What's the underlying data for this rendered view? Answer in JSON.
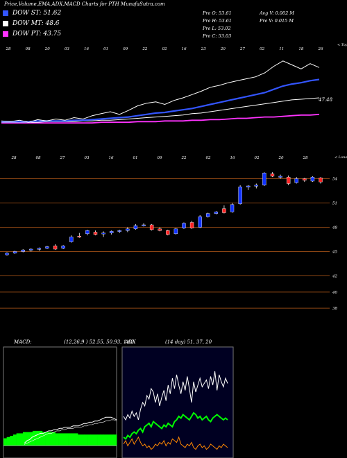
{
  "page_title": "Price,Volume,EMA,ADX,MACD Charts for PTH MunafaSutra.com",
  "legend": [
    {
      "label": "DOW ST: 51.62",
      "color": "#3355ff"
    },
    {
      "label": "DOW MT: 48.6",
      "color": "#ffffff"
    },
    {
      "label": "DOW PT: 43.75",
      "color": "#ff33ff"
    }
  ],
  "stats": {
    "open": "Pre O: 53.61",
    "high": "Pre H: 53.61",
    "low": "Pre L: 53.02",
    "close": "Pre C: 53.03",
    "avg_volume": "Avg V: 0.002 M",
    "pre_volume": "Pre V: 0.015 M"
  },
  "colors": {
    "background": "#000000",
    "up": "#1133ff",
    "down": "#ff2222",
    "grid": "#8b4513",
    "macd_fill": "#00ff00",
    "adx_bg": "#000022"
  },
  "chart_data": [
    {
      "type": "line",
      "name": "ema-panel",
      "top_ticks": [
        "28",
        "08",
        "20",
        "03",
        "16",
        "01",
        "09",
        "22",
        "02",
        "16",
        "23",
        "20",
        "27",
        "02",
        "11",
        "18",
        "26"
      ],
      "bottom_text": "< Topu",
      "value_label": "47.48",
      "series": [
        {
          "name": "Price",
          "color": "#ffffff",
          "values": [
            45.1,
            45.0,
            45.2,
            44.9,
            45.3,
            45.1,
            45.4,
            45.2,
            45.6,
            45.4,
            45.9,
            46.2,
            46.5,
            46.1,
            46.7,
            47.4,
            47.8,
            48.0,
            47.6,
            48.2,
            48.6,
            49.1,
            49.6,
            50.2,
            50.5,
            50.9,
            51.2,
            51.5,
            51.8,
            52.4,
            53.4,
            54.2,
            53.6,
            53.0,
            53.8,
            53.2
          ]
        },
        {
          "name": "EMA short",
          "color": "#3355ff",
          "values": [
            45.0,
            45.0,
            45.0,
            45.0,
            45.1,
            45.1,
            45.1,
            45.1,
            45.2,
            45.2,
            45.3,
            45.4,
            45.5,
            45.6,
            45.7,
            45.9,
            46.1,
            46.3,
            46.4,
            46.6,
            46.8,
            47.0,
            47.3,
            47.6,
            47.9,
            48.2,
            48.5,
            48.8,
            49.1,
            49.4,
            49.9,
            50.4,
            50.7,
            50.9,
            51.2,
            51.4
          ]
        },
        {
          "name": "EMA medium",
          "color": "#ffffff",
          "values": [
            44.9,
            44.9,
            44.9,
            44.9,
            44.9,
            45.0,
            45.0,
            45.0,
            45.0,
            45.1,
            45.1,
            45.2,
            45.2,
            45.3,
            45.4,
            45.5,
            45.6,
            45.7,
            45.8,
            45.9,
            46.0,
            46.2,
            46.3,
            46.5,
            46.7,
            46.9,
            47.1,
            47.3,
            47.5,
            47.7,
            47.9,
            48.1,
            48.3,
            48.4,
            48.5,
            48.6
          ]
        },
        {
          "name": "EMA long",
          "color": "#ff33ff",
          "values": [
            44.8,
            44.8,
            44.8,
            44.8,
            44.8,
            44.8,
            44.8,
            44.8,
            44.8,
            44.8,
            44.8,
            44.9,
            44.9,
            44.9,
            44.9,
            45.0,
            45.0,
            45.0,
            45.1,
            45.1,
            45.1,
            45.2,
            45.2,
            45.3,
            45.3,
            45.4,
            45.5,
            45.5,
            45.6,
            45.7,
            45.7,
            45.8,
            45.9,
            46.0,
            46.0,
            46.1
          ]
        }
      ]
    },
    {
      "type": "candlestick",
      "name": "price-panel",
      "top_ticks": [
        "28",
        "08",
        "27",
        "03",
        "16",
        "01",
        "09",
        "22",
        "02",
        "16",
        "02",
        "20",
        "28"
      ],
      "bottom_text": "< Lonon",
      "y_ticks": [
        54,
        51,
        48,
        45,
        42,
        40,
        38
      ],
      "ylim": [
        37.5,
        55.5
      ],
      "candles": [
        {
          "o": 44.6,
          "h": 44.9,
          "l": 44.5,
          "c": 44.8,
          "up": true
        },
        {
          "o": 44.8,
          "h": 45.1,
          "l": 44.7,
          "c": 45.0,
          "up": true
        },
        {
          "o": 45.0,
          "h": 45.3,
          "l": 44.9,
          "c": 45.2,
          "up": true
        },
        {
          "o": 45.2,
          "h": 45.4,
          "l": 45.0,
          "c": 45.3,
          "up": true
        },
        {
          "o": 45.3,
          "h": 45.5,
          "l": 45.1,
          "c": 45.4,
          "up": true
        },
        {
          "o": 45.4,
          "h": 45.7,
          "l": 45.3,
          "c": 45.6,
          "up": true
        },
        {
          "o": 45.7,
          "h": 45.9,
          "l": 45.2,
          "c": 45.3,
          "up": false
        },
        {
          "o": 45.4,
          "h": 45.8,
          "l": 45.3,
          "c": 45.7,
          "up": true
        },
        {
          "o": 46.2,
          "h": 47.0,
          "l": 46.1,
          "c": 46.8,
          "up": true
        },
        {
          "o": 46.9,
          "h": 47.3,
          "l": 46.7,
          "c": 46.8,
          "up": false
        },
        {
          "o": 47.2,
          "h": 47.7,
          "l": 47.0,
          "c": 47.6,
          "up": true
        },
        {
          "o": 47.4,
          "h": 47.6,
          "l": 47.0,
          "c": 47.1,
          "up": false
        },
        {
          "o": 47.2,
          "h": 47.5,
          "l": 46.8,
          "c": 47.3,
          "up": true
        },
        {
          "o": 47.3,
          "h": 47.6,
          "l": 47.1,
          "c": 47.5,
          "up": true
        },
        {
          "o": 47.5,
          "h": 47.7,
          "l": 47.3,
          "c": 47.6,
          "up": true
        },
        {
          "o": 47.6,
          "h": 48.0,
          "l": 47.4,
          "c": 47.8,
          "up": true
        },
        {
          "o": 47.8,
          "h": 48.4,
          "l": 47.7,
          "c": 48.2,
          "up": true
        },
        {
          "o": 48.3,
          "h": 48.5,
          "l": 48.1,
          "c": 48.3,
          "up": true
        },
        {
          "o": 48.3,
          "h": 48.4,
          "l": 47.6,
          "c": 47.7,
          "up": false
        },
        {
          "o": 47.8,
          "h": 48.0,
          "l": 47.5,
          "c": 47.6,
          "up": false
        },
        {
          "o": 47.6,
          "h": 47.7,
          "l": 47.0,
          "c": 47.1,
          "up": false
        },
        {
          "o": 47.2,
          "h": 47.9,
          "l": 47.1,
          "c": 47.8,
          "up": true
        },
        {
          "o": 47.9,
          "h": 48.6,
          "l": 47.8,
          "c": 48.5,
          "up": true
        },
        {
          "o": 48.6,
          "h": 48.8,
          "l": 47.8,
          "c": 47.9,
          "up": false
        },
        {
          "o": 48.0,
          "h": 49.5,
          "l": 47.9,
          "c": 49.3,
          "up": true
        },
        {
          "o": 49.3,
          "h": 49.8,
          "l": 49.2,
          "c": 49.7,
          "up": true
        },
        {
          "o": 49.7,
          "h": 50.0,
          "l": 49.6,
          "c": 49.9,
          "up": true
        },
        {
          "o": 50.3,
          "h": 50.7,
          "l": 49.7,
          "c": 49.8,
          "up": false
        },
        {
          "o": 49.9,
          "h": 51.0,
          "l": 49.8,
          "c": 50.8,
          "up": true
        },
        {
          "o": 50.9,
          "h": 53.2,
          "l": 50.8,
          "c": 53.0,
          "up": true
        },
        {
          "o": 53.0,
          "h": 53.2,
          "l": 52.6,
          "c": 53.1,
          "up": true
        },
        {
          "o": 53.1,
          "h": 53.4,
          "l": 52.8,
          "c": 53.2,
          "up": true
        },
        {
          "o": 53.2,
          "h": 54.8,
          "l": 53.1,
          "c": 54.7,
          "up": true
        },
        {
          "o": 54.6,
          "h": 54.8,
          "l": 54.2,
          "c": 54.3,
          "up": false
        },
        {
          "o": 54.3,
          "h": 54.5,
          "l": 54.0,
          "c": 54.3,
          "up": true
        },
        {
          "o": 54.2,
          "h": 54.4,
          "l": 53.2,
          "c": 53.4,
          "up": false
        },
        {
          "o": 53.5,
          "h": 54.2,
          "l": 53.4,
          "c": 54.0,
          "up": true
        },
        {
          "o": 54.0,
          "h": 54.1,
          "l": 53.6,
          "c": 53.8,
          "up": false
        },
        {
          "o": 53.7,
          "h": 54.3,
          "l": 53.6,
          "c": 54.2,
          "up": true
        },
        {
          "o": 54.1,
          "h": 54.2,
          "l": 53.4,
          "c": 53.6,
          "up": false
        }
      ]
    },
    {
      "type": "area",
      "name": "macd-panel",
      "title": "MACD:",
      "params": "(12,26,9 ) 52.55, 50.93, 1.62",
      "series": [
        {
          "name": "MACD",
          "color": "#ffffff",
          "values": [
            0.2,
            0.4,
            0.5,
            0.7,
            0.8,
            0.9,
            1.0,
            1.0,
            1.1,
            1.2,
            1.2,
            1.3,
            1.3,
            1.4,
            1.4,
            1.5,
            1.5,
            1.5,
            1.6,
            1.6,
            1.6,
            1.7,
            1.8,
            1.8,
            1.9,
            1.9,
            2.0,
            2.0,
            2.1,
            2.2,
            2.3,
            2.3,
            2.3,
            2.2,
            2.1
          ]
        },
        {
          "name": "Signal",
          "color": "#ffffff",
          "values": [
            0.1,
            0.2,
            0.3,
            0.4,
            0.5,
            0.6,
            0.7,
            0.8,
            0.9,
            1.0,
            1.0,
            1.1,
            1.2,
            1.2,
            1.3,
            1.3,
            1.4,
            1.4,
            1.4,
            1.5,
            1.5,
            1.5,
            1.6,
            1.6,
            1.7,
            1.7,
            1.8,
            1.8,
            1.9,
            1.9,
            2.0,
            2.0,
            2.1,
            2.1,
            2.0
          ]
        },
        {
          "name": "Histogram",
          "color": "#00ff00",
          "values": [
            0.6,
            0.7,
            0.8,
            0.9,
            1.0,
            1.0,
            1.1,
            1.1,
            1.1,
            1.2,
            1.2,
            1.2,
            1.1,
            1.1,
            1.1,
            1.1,
            1.0,
            1.0,
            1.0,
            1.0,
            1.0,
            1.0,
            1.0,
            0.9,
            0.9,
            0.9,
            0.9,
            0.9,
            0.9,
            0.9,
            0.9,
            0.9,
            0.9,
            0.9,
            0.9
          ]
        }
      ],
      "ylim": [
        -1,
        8
      ]
    },
    {
      "type": "line",
      "name": "adx-panel",
      "title": "ADX",
      "params": "(14 day) 51, 37, 20",
      "series": [
        {
          "name": "ADX",
          "color": "#ffffff",
          "values": [
            22,
            20,
            23,
            21,
            25,
            22,
            24,
            20,
            26,
            30,
            28,
            34,
            32,
            38,
            36,
            30,
            35,
            28,
            33,
            37,
            31,
            40,
            35,
            44,
            38,
            46,
            40,
            35,
            42,
            37,
            45,
            38,
            30,
            42,
            36,
            40,
            44,
            39,
            41,
            43,
            38,
            45,
            40,
            48,
            37,
            46,
            42,
            39,
            44,
            41
          ]
        },
        {
          "name": "+DI",
          "color": "#00ff00",
          "values": [
            10,
            9,
            11,
            10,
            12,
            13,
            12,
            14,
            15,
            13,
            16,
            17,
            18,
            16,
            19,
            18,
            17,
            16,
            15,
            17,
            16,
            18,
            17,
            16,
            19,
            20,
            22,
            21,
            23,
            22,
            21,
            20,
            22,
            24,
            23,
            21,
            22,
            20,
            21,
            22,
            20,
            19,
            21,
            22,
            23,
            22,
            21,
            20,
            21,
            20
          ]
        },
        {
          "name": "-DI",
          "color": "#ff8800",
          "values": [
            6,
            8,
            5,
            7,
            9,
            6,
            8,
            10,
            7,
            5,
            6,
            4,
            5,
            3,
            4,
            6,
            5,
            7,
            6,
            8,
            5,
            7,
            6,
            9,
            8,
            7,
            10,
            6,
            5,
            4,
            6,
            5,
            7,
            4,
            3,
            5,
            6,
            4,
            5,
            3,
            4,
            6,
            5,
            4,
            3,
            5,
            4,
            6,
            5,
            4
          ]
        }
      ],
      "ylim": [
        0,
        60
      ]
    }
  ]
}
